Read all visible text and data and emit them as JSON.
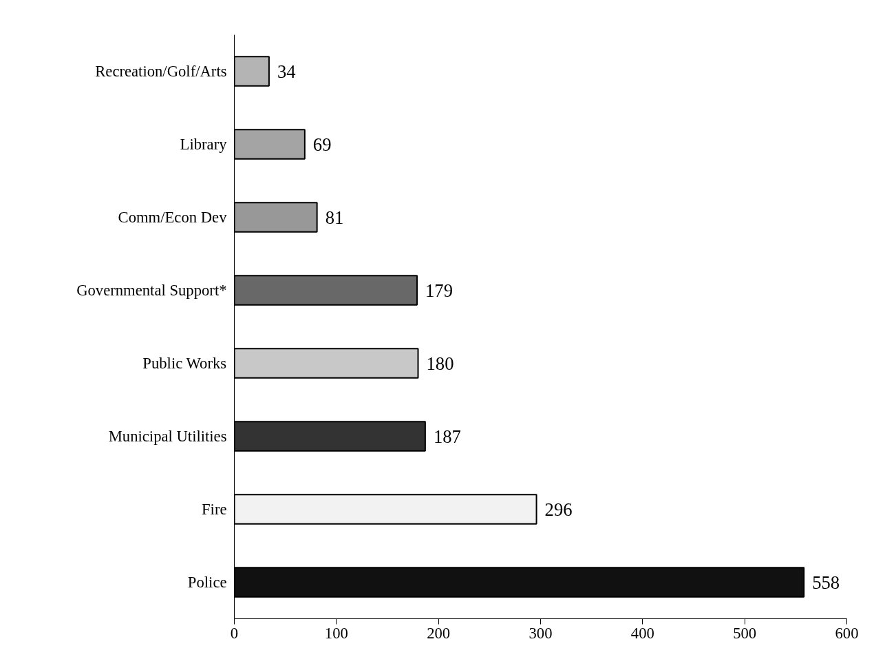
{
  "chart_data": {
    "type": "bar",
    "orientation": "horizontal",
    "categories": [
      "Recreation/Golf/Arts",
      "Library",
      "Comm/Econ Dev",
      "Governmental Support*",
      "Public Works",
      "Municipal Utilities",
      "Fire",
      "Police"
    ],
    "values": [
      34,
      69,
      81,
      179,
      180,
      187,
      296,
      558
    ],
    "colors": [
      "#b4b4b4",
      "#a4a4a4",
      "#989898",
      "#686868",
      "#c8c8c8",
      "#333333",
      "#f2f2f2",
      "#111111"
    ],
    "xlim": [
      0,
      600
    ],
    "xticks": [
      0,
      100,
      200,
      300,
      400,
      500,
      600
    ],
    "grid": false,
    "data_labels": true
  }
}
